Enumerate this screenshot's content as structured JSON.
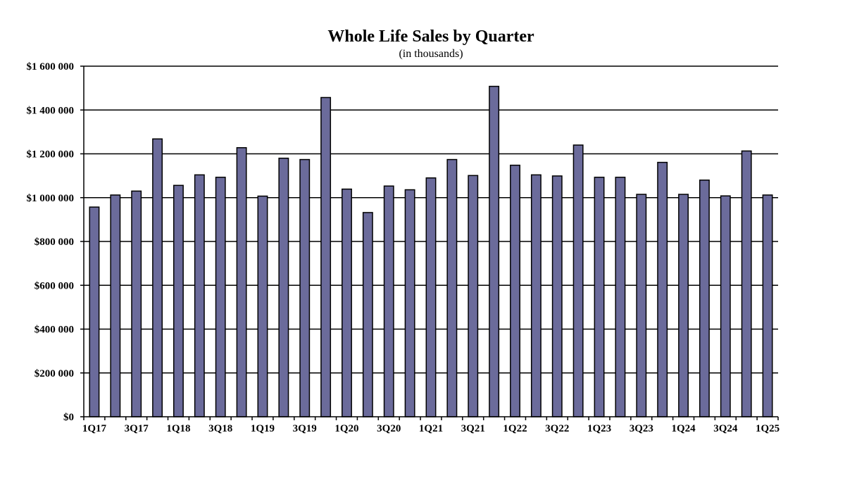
{
  "chart_data": {
    "type": "bar",
    "title": "Whole Life Sales by Quarter",
    "subtitle": "(in thousands)",
    "xlabel": "",
    "ylabel": "",
    "ylim": [
      0,
      1600000
    ],
    "y_ticks": [
      0,
      200000,
      400000,
      600000,
      800000,
      1000000,
      1200000,
      1400000,
      1600000
    ],
    "y_tick_labels": [
      "$0",
      "$200 000",
      "$400 000",
      "$600 000",
      "$800 000",
      "$1 000 000",
      "$1 200 000",
      "$1 400 000",
      "$1 600 000"
    ],
    "grid": true,
    "bar_color": "#6b6b9b",
    "bar_edge_color": "#000000",
    "categories": [
      "1Q17",
      "2Q17",
      "3Q17",
      "4Q17",
      "1Q18",
      "2Q18",
      "3Q18",
      "4Q18",
      "1Q19",
      "2Q19",
      "3Q19",
      "4Q19",
      "1Q20",
      "2Q20",
      "3Q20",
      "4Q20",
      "1Q21",
      "2Q21",
      "3Q21",
      "4Q21",
      "1Q22",
      "2Q22",
      "3Q22",
      "4Q22",
      "1Q23",
      "2Q23",
      "3Q23",
      "4Q23",
      "1Q24",
      "2Q24",
      "3Q24",
      "4Q24",
      "1Q25"
    ],
    "x_tick_labels": [
      "1Q17",
      "3Q17",
      "1Q18",
      "3Q18",
      "1Q19",
      "3Q19",
      "1Q20",
      "3Q20",
      "1Q21",
      "3Q21",
      "1Q22",
      "3Q22",
      "1Q23",
      "3Q23",
      "1Q24",
      "3Q24",
      "1Q25"
    ],
    "values": [
      957000,
      1012000,
      1030000,
      1268000,
      1056000,
      1104000,
      1093000,
      1228000,
      1007000,
      1180000,
      1174000,
      1457000,
      1039000,
      932000,
      1053000,
      1036000,
      1090000,
      1174000,
      1101000,
      1508000,
      1148000,
      1104000,
      1099000,
      1240000,
      1093000,
      1093000,
      1015000,
      1161000,
      1015000,
      1080000,
      1008000,
      1213000,
      1012000
    ]
  }
}
